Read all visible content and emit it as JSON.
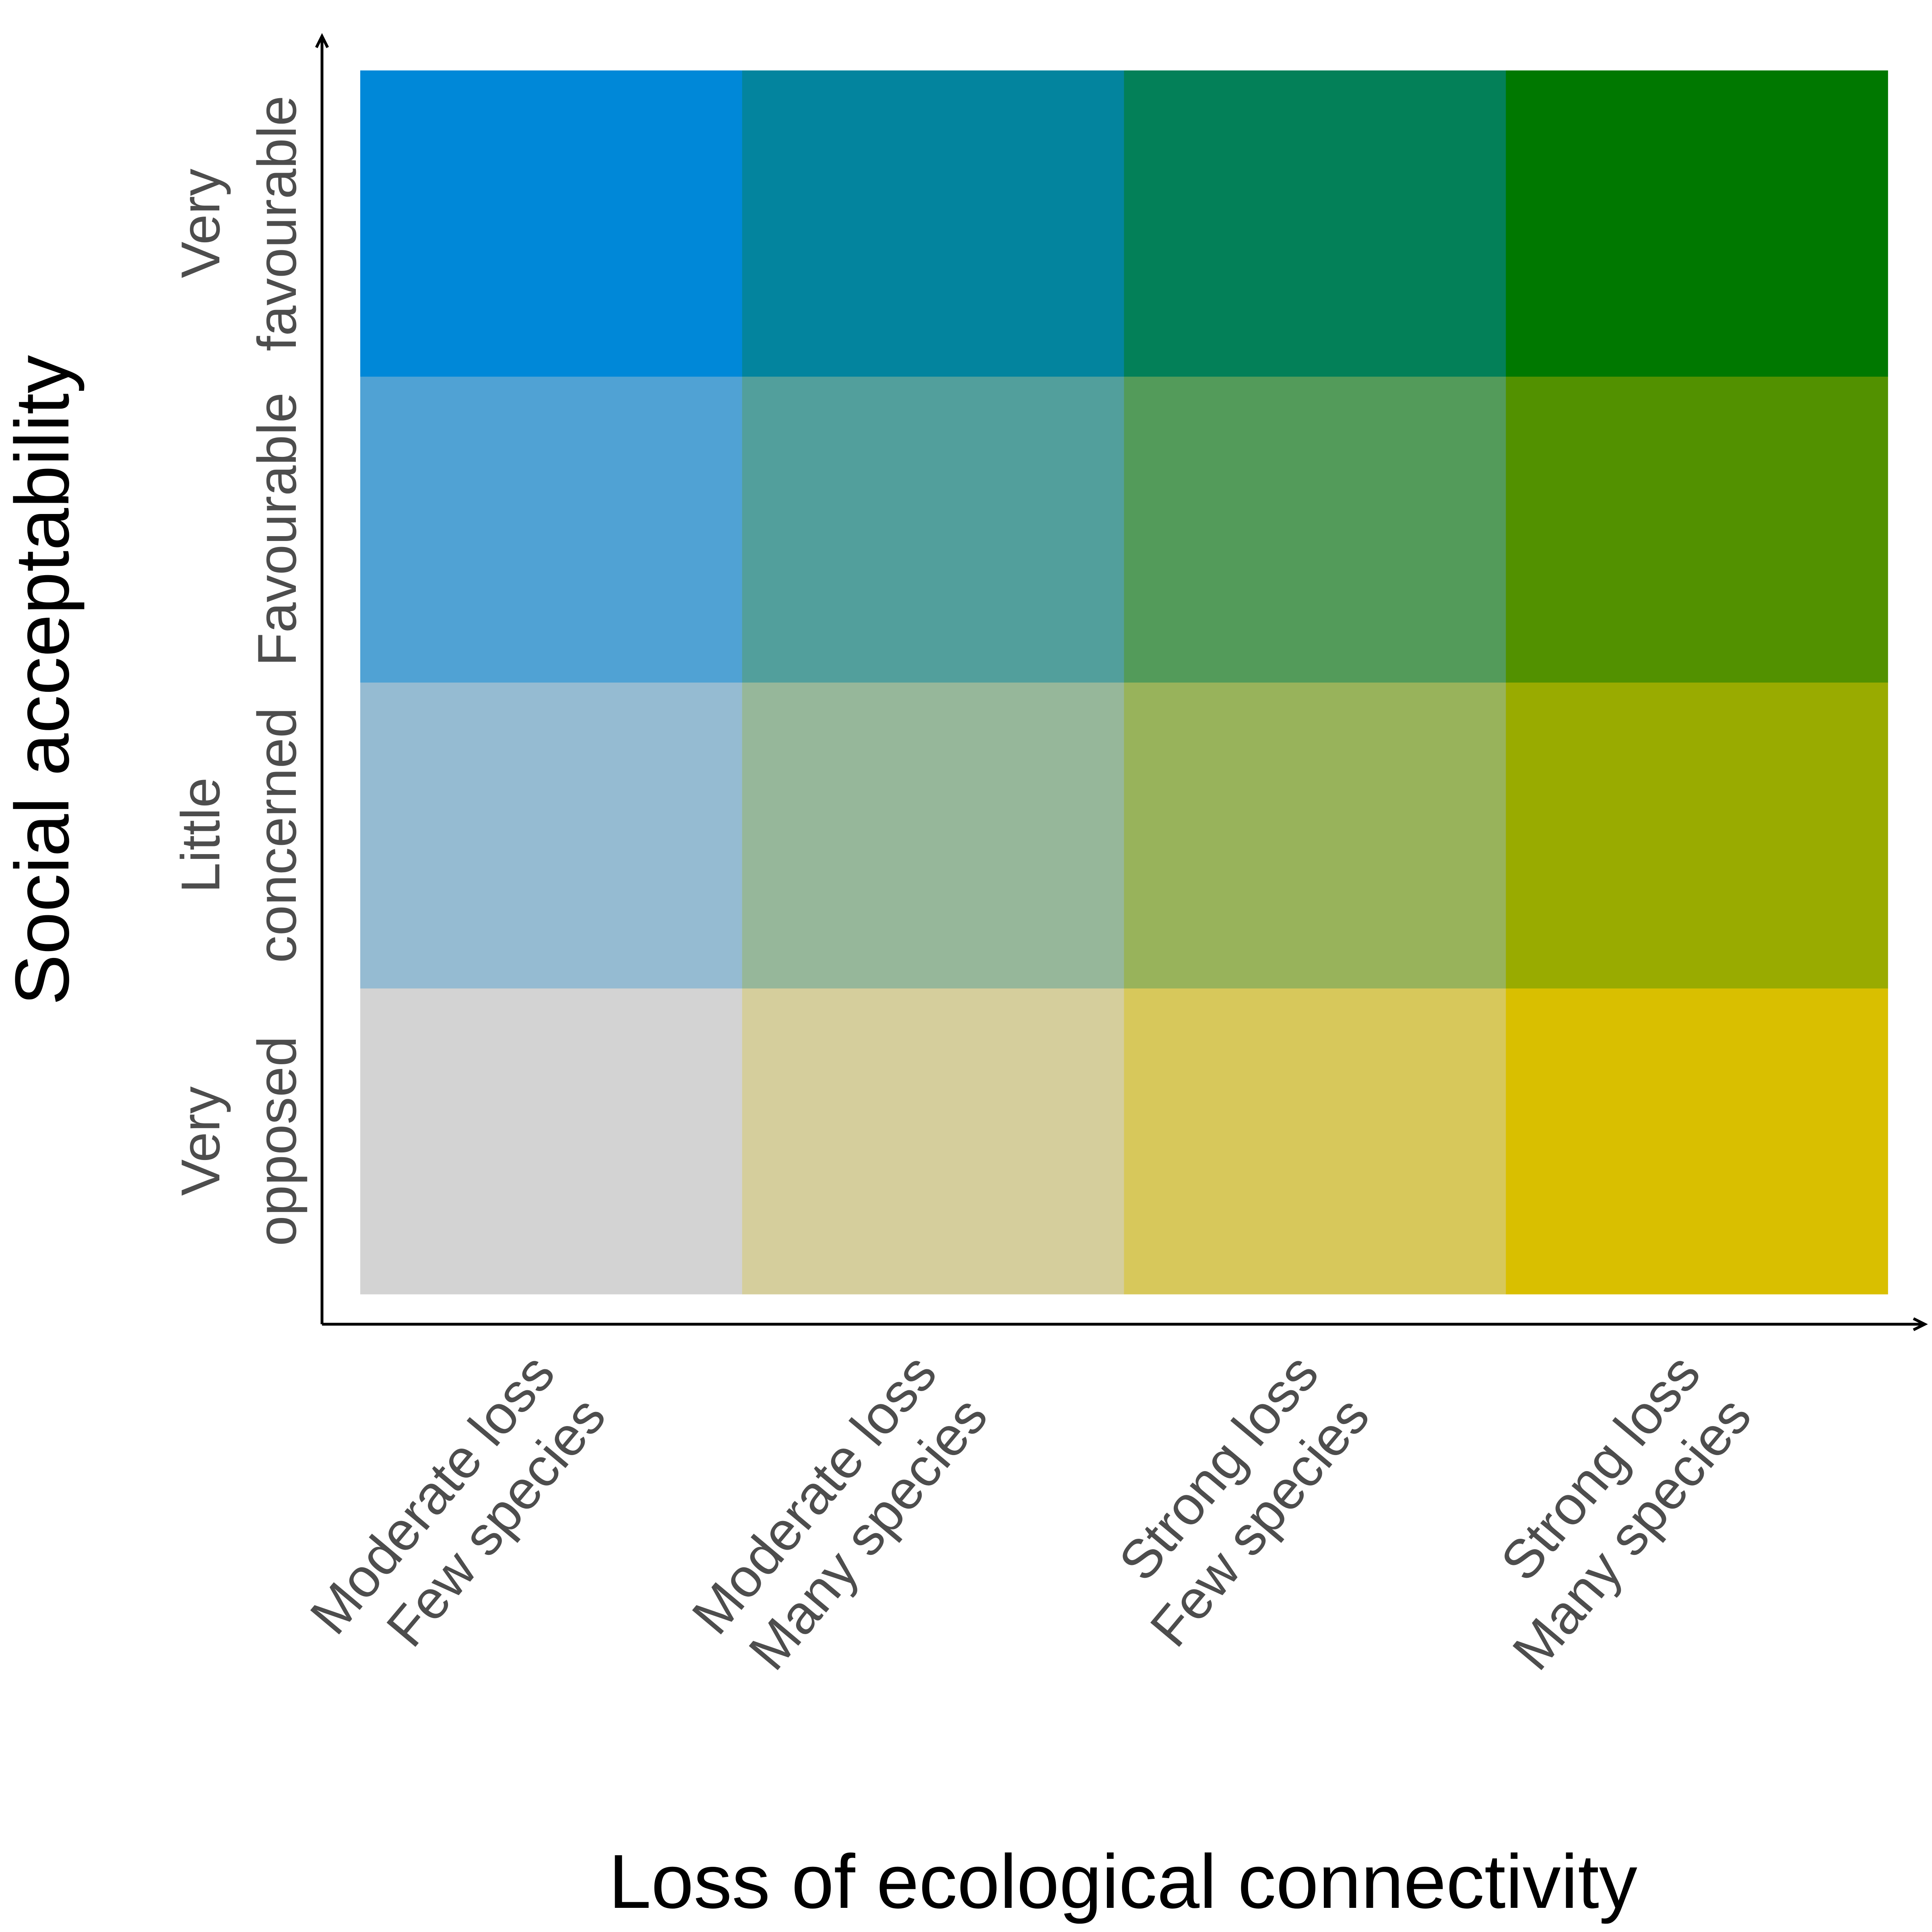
{
  "chart_data": {
    "type": "heatmap",
    "title": "",
    "xlabel": "Loss of ecological connectivity",
    "ylabel": "Social acceptability",
    "x_categories": [
      [
        "Moderate loss",
        "Few species"
      ],
      [
        "Moderate loss",
        "Many species"
      ],
      [
        "Strong loss",
        "Few species"
      ],
      [
        "Strong loss",
        "Many species"
      ]
    ],
    "y_categories": [
      [
        "Very",
        "opposed"
      ],
      [
        "Little",
        "concerned"
      ],
      [
        "Favourable"
      ],
      [
        "Very",
        "favourable"
      ]
    ],
    "cell_colors": [
      [
        "#d3d3d3",
        "#d5ce9c",
        "#d7c85b",
        "#d9bf00"
      ],
      [
        "#95bbd2",
        "#96b79a",
        "#98b35b",
        "#99ab00"
      ],
      [
        "#50a2d4",
        "#529f9c",
        "#539b5a",
        "#529100"
      ],
      [
        "#0088d8",
        "#03849e",
        "#038058",
        "#007800"
      ]
    ],
    "grid": false,
    "legend": "none"
  }
}
